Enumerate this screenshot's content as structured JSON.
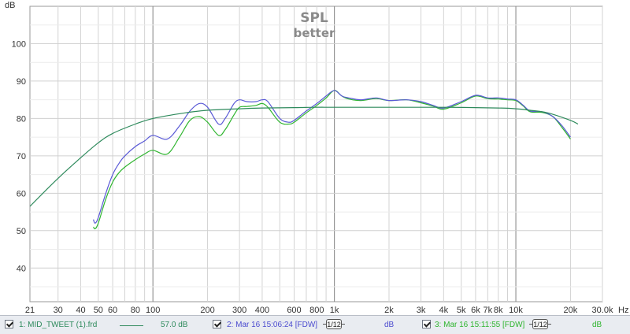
{
  "chart_data": {
    "type": "line",
    "title": "SPL",
    "subtitle": "better",
    "y_unit": "dB",
    "x_unit": "Hz",
    "x_scale": "log",
    "xlim": [
      21,
      30000
    ],
    "ylim": [
      31,
      110
    ],
    "grid": true,
    "y_ticks": [
      40,
      50,
      60,
      70,
      80,
      90,
      100
    ],
    "y_tick_labels": [
      "40",
      "50",
      "60",
      "70",
      "80",
      "90",
      "100"
    ],
    "x_ticks": [
      21,
      30,
      40,
      50,
      60,
      80,
      100,
      200,
      300,
      400,
      600,
      800,
      1000,
      2000,
      3000,
      4000,
      5000,
      6000,
      7000,
      8000,
      10000,
      20000,
      30000
    ],
    "x_tick_labels": [
      "21",
      "30",
      "40",
      "50",
      "60",
      "80",
      "100",
      "200",
      "300",
      "400",
      "600",
      "800",
      "1k",
      "2k",
      "3k",
      "4k",
      "5k",
      "6k",
      "7k",
      "8k",
      "10k",
      "20k",
      "30.0k"
    ],
    "series": [
      {
        "name": "MID_TWEET (1).frd",
        "color": "#2e8a5c",
        "x": [
          21,
          30,
          40,
          50,
          60,
          80,
          100,
          150,
          200,
          300,
          400,
          600,
          800,
          1000,
          2000,
          4000,
          8000,
          10000,
          12000,
          15000,
          20000,
          22000
        ],
        "y": [
          56.5,
          64,
          69.5,
          73.5,
          76,
          78.5,
          80,
          81.5,
          82.2,
          82.6,
          82.8,
          82.9,
          83,
          83,
          83,
          83,
          82.8,
          82.6,
          82.2,
          81.5,
          79.5,
          78.5
        ]
      },
      {
        "name": "Mar 16 15:06:24 [FDW]",
        "color": "#5a5ad6",
        "x": [
          47,
          48,
          50,
          55,
          60,
          65,
          70,
          80,
          90,
          100,
          120,
          140,
          160,
          180,
          200,
          230,
          250,
          280,
          300,
          330,
          370,
          400,
          430,
          500,
          560,
          600,
          700,
          800,
          900,
          1000,
          1100,
          1200,
          1400,
          1700,
          2000,
          2500,
          3000,
          3500,
          4000,
          5000,
          6000,
          7000,
          8000,
          9000,
          10000,
          11000,
          12000,
          14000,
          16000,
          18000,
          20000
        ],
        "y": [
          53,
          52,
          53.5,
          60,
          65,
          68,
          70,
          72.5,
          74,
          75.5,
          74.5,
          78,
          82,
          84,
          83,
          78.5,
          80,
          84,
          85,
          84.5,
          84.5,
          85,
          84.5,
          80,
          79,
          79.5,
          82,
          84,
          86,
          87.5,
          86,
          85.5,
          85,
          85.5,
          84.8,
          85,
          84.5,
          83.5,
          82.8,
          84.5,
          86.2,
          85.5,
          85.5,
          85.2,
          85,
          83.5,
          82,
          81.8,
          80.5,
          78,
          75
        ]
      },
      {
        "name": "Mar 16 15:11:55 [FDW]",
        "color": "#2fb52f",
        "x": [
          47,
          48,
          50,
          55,
          60,
          65,
          70,
          80,
          90,
          100,
          120,
          140,
          160,
          180,
          200,
          230,
          250,
          280,
          300,
          330,
          370,
          400,
          430,
          500,
          560,
          600,
          700,
          800,
          900,
          1000,
          1100,
          1200,
          1400,
          1700,
          2000,
          2500,
          3000,
          3500,
          4000,
          5000,
          6000,
          7000,
          8000,
          9000,
          10000,
          11000,
          12000,
          14000,
          16000,
          18000,
          20000
        ],
        "y": [
          51,
          50.5,
          52,
          58.5,
          63,
          65.5,
          67,
          69,
          70.5,
          71.5,
          70.5,
          75,
          79.5,
          80.5,
          79,
          75.5,
          77,
          81,
          83,
          83.2,
          83.5,
          84,
          83,
          79,
          78.5,
          79,
          81.5,
          83.5,
          85.5,
          87.5,
          86,
          85.2,
          84.8,
          85.3,
          84.8,
          85,
          84.2,
          83.3,
          82.5,
          84.2,
          86,
          85.3,
          85.2,
          85,
          84.8,
          83.3,
          81.8,
          81.6,
          80.5,
          77.5,
          74.5
        ]
      }
    ]
  },
  "legend": {
    "items": [
      {
        "label": "1: MID_TWEET (1).frd",
        "offset": "57.0 dB",
        "unit": "",
        "color": "#2e8a5c"
      },
      {
        "label": "2: Mar 16 15:06:24 [FDW]",
        "offset": "",
        "unit": "dB",
        "color": "#5a5ad6",
        "smoothing": "1/12"
      },
      {
        "label": "3: Mar 16 15:11:55 [FDW]",
        "offset": "",
        "unit": "dB",
        "color": "#2fb52f",
        "smoothing": "1/12"
      }
    ]
  }
}
